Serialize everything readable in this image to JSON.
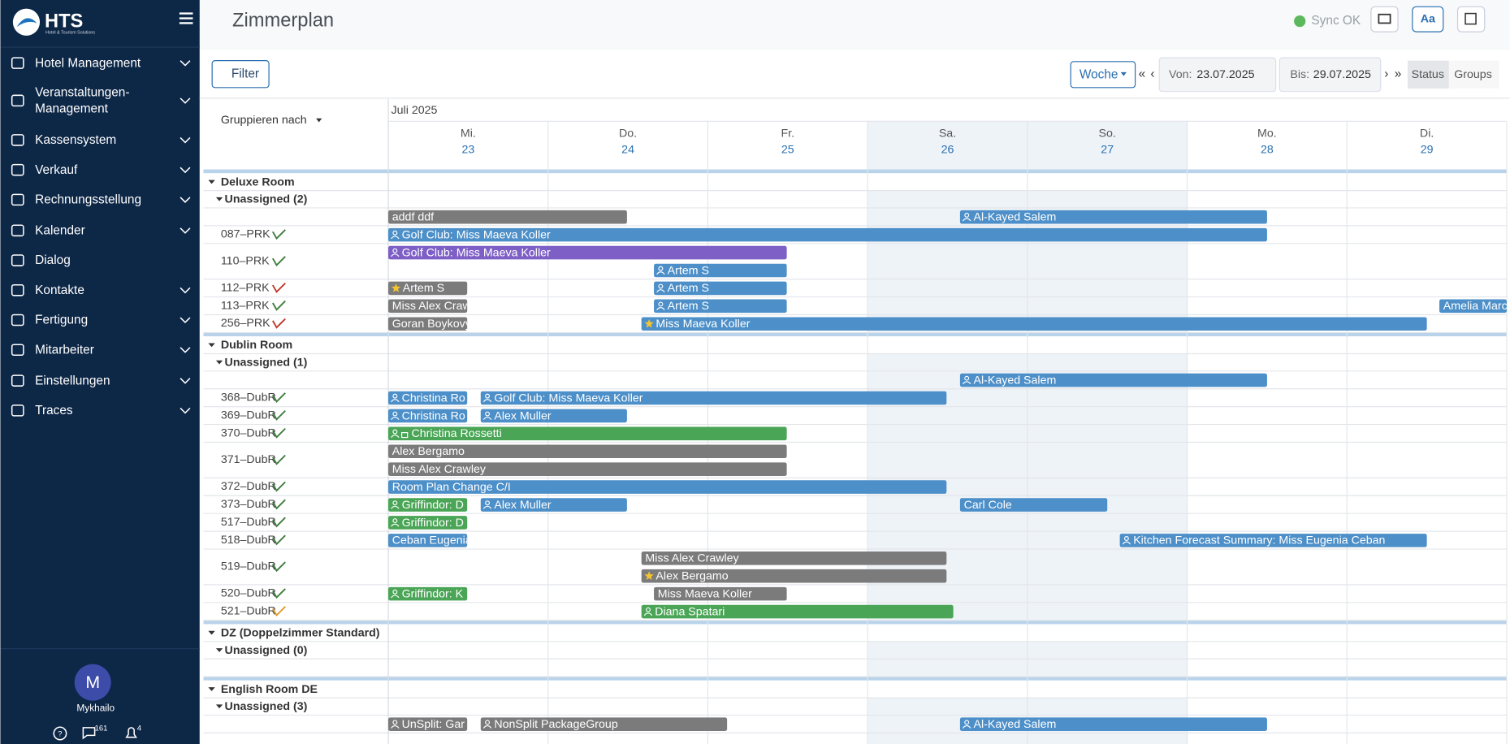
{
  "sidebar": {
    "brand": "HTS",
    "brand_sub": "Hotel & Tourism Solutions",
    "menu": [
      {
        "label": [
          "Hotel Management"
        ],
        "expandable": true
      },
      {
        "label": [
          "Veranstaltungen-",
          "Management"
        ],
        "expandable": true
      },
      {
        "label": [
          "Kassensystem"
        ],
        "expandable": true
      },
      {
        "label": [
          "Verkauf"
        ],
        "expandable": true
      },
      {
        "label": [
          "Rechnungsstellung"
        ],
        "expandable": true
      },
      {
        "label": [
          "Kalender"
        ],
        "expandable": true
      },
      {
        "label": [
          "Dialog"
        ],
        "expandable": false
      },
      {
        "label": [
          "Kontakte"
        ],
        "expandable": true
      },
      {
        "label": [
          "Fertigung"
        ],
        "expandable": true
      },
      {
        "label": [
          "Mitarbeiter"
        ],
        "expandable": true
      },
      {
        "label": [
          "Einstellungen"
        ],
        "expandable": true
      },
      {
        "label": [
          "Traces"
        ],
        "expandable": true
      }
    ],
    "user": {
      "initial": "M",
      "name": "Mykhailo"
    },
    "badges": {
      "messages": 161,
      "notifications": 4
    }
  },
  "header": {
    "title": "Zimmerplan",
    "sync": "Sync OK",
    "font_button": "Aa"
  },
  "toolbar": {
    "filter": "Filter",
    "view": "Woche",
    "first": "«",
    "prev": "‹",
    "from_label": "Von:",
    "from": "23.07.2025",
    "to_label": "Bis:",
    "to": "29.07.2025",
    "next": "›",
    "last": "»",
    "tabs": [
      "Status",
      "Groups"
    ]
  },
  "planner": {
    "group_by": "Gruppieren nach",
    "month": "Juli 2025",
    "days": [
      {
        "weekday": "Mi.",
        "day": 23,
        "weekend": false
      },
      {
        "weekday": "Do.",
        "day": 24,
        "weekend": false
      },
      {
        "weekday": "Fr.",
        "day": 25,
        "weekend": false
      },
      {
        "weekday": "Sa.",
        "day": 26,
        "weekend": true
      },
      {
        "weekday": "So.",
        "day": 27,
        "weekend": true
      },
      {
        "weekday": "Mo.",
        "day": 28,
        "weekend": false
      },
      {
        "weekday": "Di.",
        "day": 29,
        "weekend": false
      }
    ],
    "groups": [
      {
        "name": "Deluxe Room",
        "unassigned": "Unassigned (2)",
        "rows": [
          {
            "bookings": [
              {
                "label": "addf ddf",
                "color": "#7b7b7b"
              },
              {
                "label": "Al-Kayed Salem",
                "color": "#4d8fc8"
              }
            ]
          },
          {
            "room": "087–PRK",
            "broom": "#3f7d3f",
            "bookings": [
              {
                "label": "Golf Club: Miss Maeva Koller",
                "color": "#4d8fc8"
              }
            ]
          },
          {
            "room": "110–PRK",
            "broom": "#3f7d3f",
            "bookings": [
              {
                "label": "Golf Club: Miss Maeva Koller",
                "color": "#7e5fc6"
              },
              {
                "label": "Artem S",
                "color": "#4d8fc8"
              }
            ]
          },
          {
            "room": "112–PRK",
            "broom": "#c0392b",
            "bookings": [
              {
                "label": "Artem S",
                "color": "#7b7b7b"
              },
              {
                "label": "Artem S",
                "color": "#4d8fc8"
              }
            ]
          },
          {
            "room": "113–PRK",
            "broom": "#3f7d3f",
            "bookings": [
              {
                "label": "Miss Alex Craw",
                "color": "#7b7b7b"
              },
              {
                "label": "Artem S",
                "color": "#4d8fc8"
              },
              {
                "label": "Amelia Marc",
                "color": "#4d8fc8"
              }
            ]
          },
          {
            "room": "256–PRK",
            "broom": "#c0392b",
            "bookings": [
              {
                "label": "Goran Boykovy",
                "color": "#7b7b7b"
              },
              {
                "label": "Miss Maeva Koller",
                "color": "#4d8fc8"
              }
            ]
          }
        ]
      },
      {
        "name": "Dublin Room",
        "unassigned": "Unassigned (1)",
        "rows": [
          {
            "bookings": [
              {
                "label": "Al-Kayed Salem",
                "color": "#4d8fc8"
              }
            ]
          },
          {
            "room": "368–DubR",
            "broom": "#3f7d3f",
            "bookings": [
              {
                "label": "Christina Ro",
                "color": "#4d8fc8"
              },
              {
                "label": "Golf Club: Miss Maeva Koller",
                "color": "#4d8fc8"
              }
            ]
          },
          {
            "room": "369–DubR",
            "broom": "#3f7d3f",
            "bookings": [
              {
                "label": "Christina Ro",
                "color": "#4d8fc8"
              },
              {
                "label": "Alex Muller",
                "color": "#4d8fc8"
              }
            ]
          },
          {
            "room": "370–DubR",
            "broom": "#3f7d3f",
            "bookings": [
              {
                "label": "Christina Rossetti",
                "color": "#4aa556"
              }
            ]
          },
          {
            "room": "371–DubR",
            "broom": "#3f7d3f",
            "bookings": [
              {
                "label": "Alex Bergamo",
                "color": "#7b7b7b"
              },
              {
                "label": "Miss Alex Crawley",
                "color": "#7b7b7b"
              }
            ]
          },
          {
            "room": "372–DubR",
            "broom": "#3f7d3f",
            "bookings": [
              {
                "label": "Room Plan Change C/I",
                "color": "#4d8fc8"
              }
            ]
          },
          {
            "room": "373–DubR",
            "broom": "#3f7d3f",
            "bookings": [
              {
                "label": "Griffindor: D",
                "color": "#4aa556"
              },
              {
                "label": "Alex Muller",
                "color": "#4d8fc8"
              },
              {
                "label": "Carl Cole",
                "color": "#4d8fc8"
              }
            ]
          },
          {
            "room": "517–DubR",
            "broom": "#3f7d3f",
            "bookings": [
              {
                "label": "Griffindor: D",
                "color": "#4aa556"
              }
            ]
          },
          {
            "room": "518–DubR",
            "broom": "#3f7d3f",
            "bookings": [
              {
                "label": "Ceban Eugenia",
                "color": "#4d8fc8"
              },
              {
                "label": "Kitchen Forecast Summary: Miss Eugenia Ceban",
                "color": "#4d8fc8"
              }
            ]
          },
          {
            "room": "519–DubR",
            "broom": "#3f7d3f",
            "bookings": [
              {
                "label": "Miss Alex Crawley",
                "color": "#7b7b7b"
              },
              {
                "label": "Alex Bergamo",
                "color": "#7b7b7b"
              }
            ]
          },
          {
            "room": "520–DubR",
            "broom": "#3f7d3f",
            "bookings": [
              {
                "label": "Griffindor: K",
                "color": "#4aa556"
              },
              {
                "label": "Miss Maeva Koller",
                "color": "#7b7b7b"
              }
            ]
          },
          {
            "room": "521–DubR",
            "broom": "#e39a2b",
            "bookings": [
              {
                "label": "Diana Spatari",
                "color": "#4aa556"
              }
            ]
          }
        ]
      },
      {
        "name": "DZ (Doppelzimmer Standard)",
        "unassigned": "Unassigned (0)",
        "rows": [
          {
            "bookings": []
          }
        ]
      },
      {
        "name": "English Room DE",
        "unassigned": "Unassigned (3)",
        "rows": [
          {
            "bookings": [
              {
                "label": "UnSplit: Gar",
                "color": "#7b7b7b"
              },
              {
                "label": "NonSplit PackageGroup",
                "color": "#7b7b7b"
              },
              {
                "label": "Al-Kayed Salem",
                "color": "#4d8fc8"
              }
            ]
          }
        ]
      }
    ]
  }
}
